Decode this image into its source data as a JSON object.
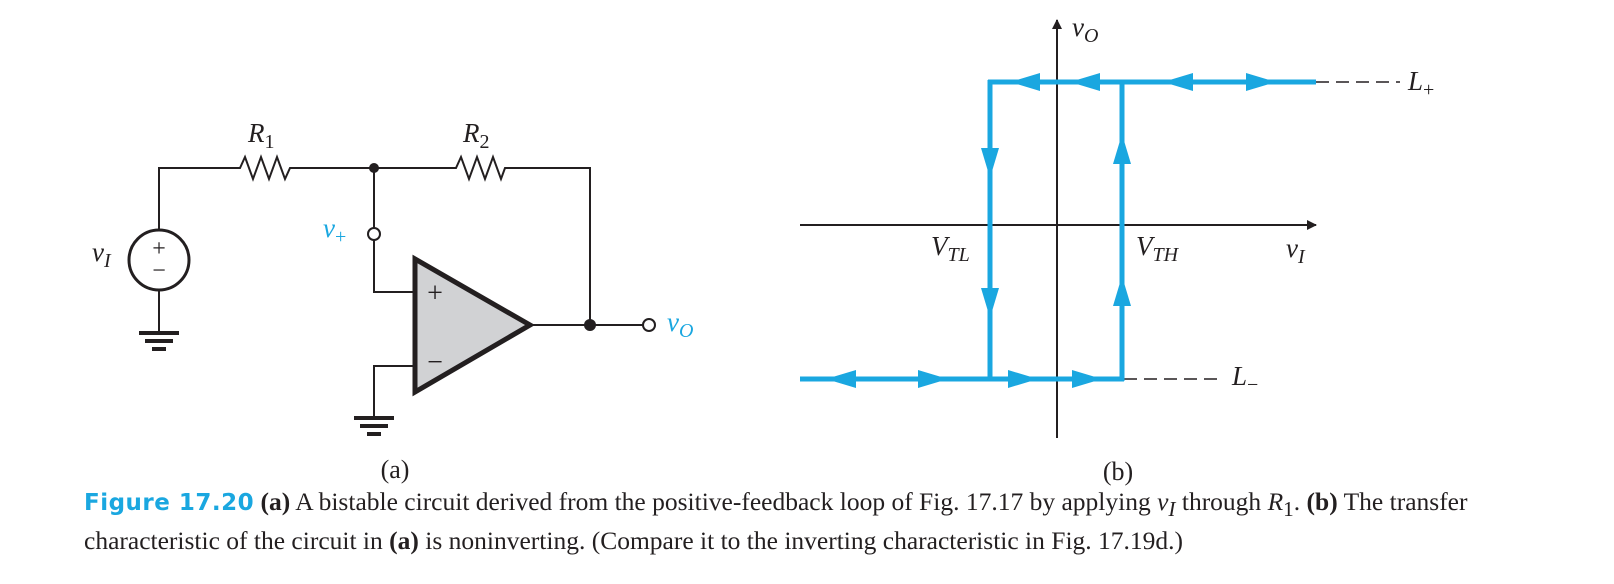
{
  "circuit": {
    "r1_label": "R",
    "r1_sub": "1",
    "r2_label": "R",
    "r2_sub": "2",
    "vi_label": "v",
    "vi_sub": "I",
    "vplus_label": "v",
    "vplus_sub": "+",
    "vo_label": "v",
    "vo_sub": "O",
    "opamp_plus": "+",
    "opamp_minus": "−",
    "source_plus": "+",
    "source_minus": "−",
    "sublabel": "(a)"
  },
  "transfer": {
    "y_axis_label": "v",
    "y_axis_sub": "O",
    "x_axis_label": "v",
    "x_axis_sub": "I",
    "l_plus_label": "L",
    "l_plus_sub": "+",
    "l_minus_label": "L",
    "l_minus_sub": "−",
    "vtl_label": "V",
    "vtl_sub": "TL",
    "vth_label": "V",
    "vth_sub": "TH",
    "sublabel": "(b)",
    "curve_color": "#1aa7e0"
  },
  "caption": {
    "fig_label": "Figure 17.20",
    "part_a": "(a)",
    "text1": " A bistable circuit derived from the positive-feedback loop of Fig. 17.17 by applying ",
    "vi_var": "v",
    "vi_sub": "I",
    "text2": " through ",
    "r1_var": "R",
    "r1_sub": "1",
    "text3": ". ",
    "part_b": "(b)",
    "text4": " The transfer characteristic of the circuit in ",
    "part_a2": "(a)",
    "text5": " is noninverting. (Compare it to the inverting characteristic in Fig. 17.19d.)"
  }
}
